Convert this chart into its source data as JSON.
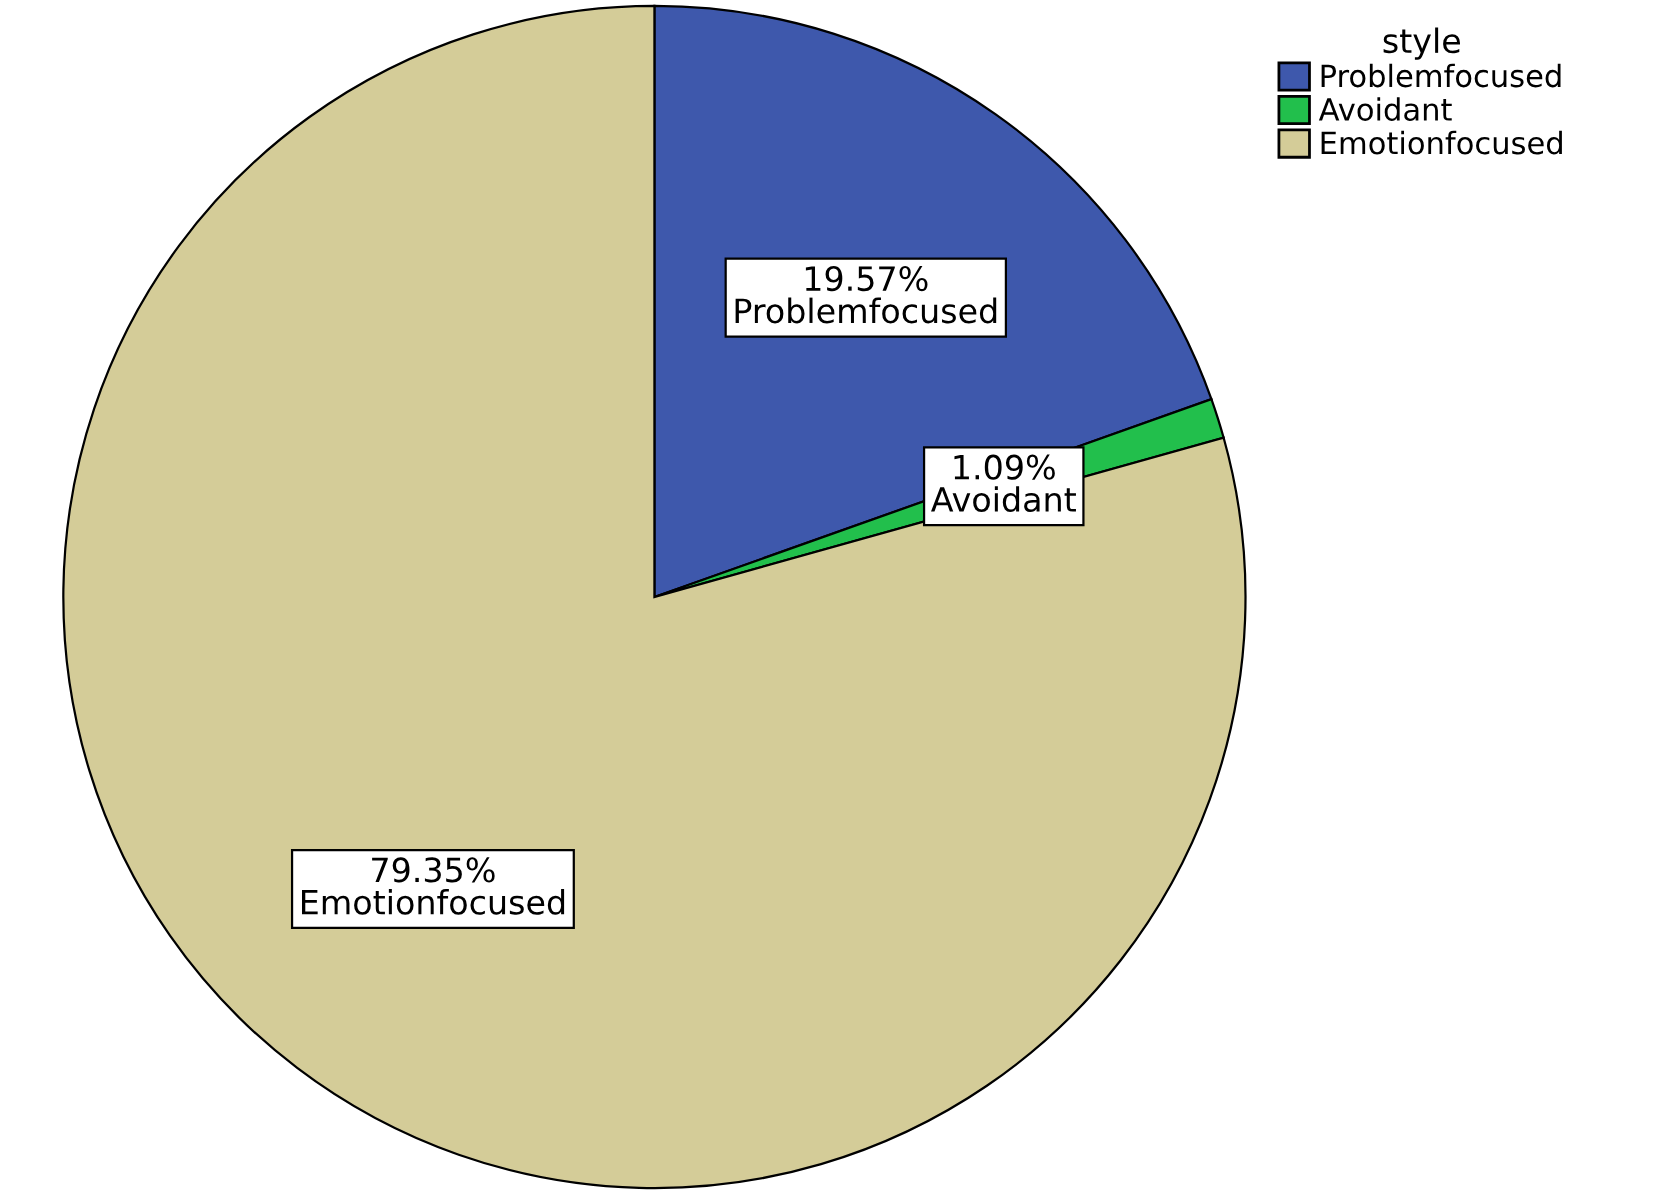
{
  "chart_data": {
    "type": "pie",
    "legend_title": "style",
    "legend": "top right",
    "value_labels": [
      "19.57%",
      "1.09%",
      "79.35%"
    ],
    "categories": [
      "Problemfocused",
      "Avoidant",
      "Emotionfocused"
    ],
    "values": [
      19.57,
      1.09,
      79.35
    ],
    "colors": [
      "#3e58ac",
      "#22bf4c",
      "#d4cc98"
    ]
  }
}
